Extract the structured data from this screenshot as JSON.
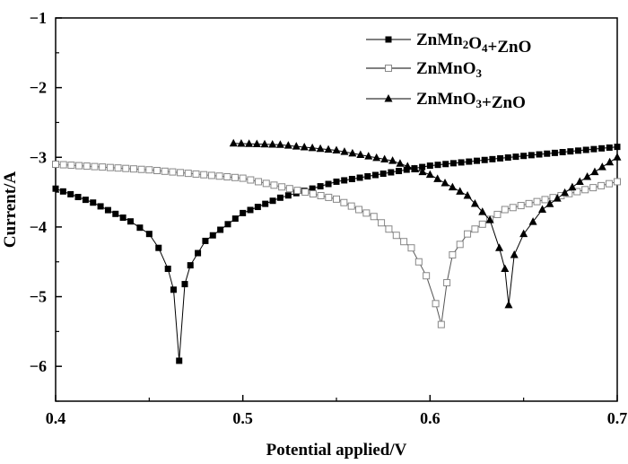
{
  "chart_data": {
    "type": "line",
    "xlabel": "Potential applied/V",
    "ylabel": "Current/A",
    "xlim": [
      0.4,
      0.7
    ],
    "ylim": [
      -6.5,
      -1
    ],
    "xticks": [
      "0.4",
      "0.5",
      "0.6",
      "0.7"
    ],
    "yticks": [
      "−6",
      "−5",
      "−4",
      "−3",
      "−2",
      "−1"
    ],
    "grid": false,
    "legend_position": "top-right",
    "series": [
      {
        "name_main": "ZnMn",
        "name_sub1": "2",
        "name_mid": "O",
        "name_sub2": "4",
        "name_tail": "+ZnO",
        "marker": "filled-square",
        "x": [
          0.4,
          0.42,
          0.44,
          0.45,
          0.455,
          0.46,
          0.463,
          0.466,
          0.469,
          0.472,
          0.48,
          0.5,
          0.52,
          0.55,
          0.6,
          0.65,
          0.7
        ],
        "y": [
          -3.45,
          -3.65,
          -3.92,
          -4.1,
          -4.3,
          -4.6,
          -4.9,
          -5.92,
          -4.82,
          -4.55,
          -4.2,
          -3.8,
          -3.58,
          -3.35,
          -3.12,
          -2.98,
          -2.85
        ]
      },
      {
        "name_main": "ZnMnO",
        "name_sub1": "3",
        "name_mid": "",
        "name_sub2": "",
        "name_tail": "",
        "marker": "open-square",
        "x": [
          0.4,
          0.45,
          0.5,
          0.55,
          0.57,
          0.59,
          0.598,
          0.603,
          0.606,
          0.609,
          0.612,
          0.62,
          0.64,
          0.67,
          0.7
        ],
        "y": [
          -3.1,
          -3.18,
          -3.3,
          -3.6,
          -3.85,
          -4.3,
          -4.7,
          -5.1,
          -5.4,
          -4.8,
          -4.4,
          -4.1,
          -3.75,
          -3.55,
          -3.35
        ]
      },
      {
        "name_main": "ZnMnO",
        "name_sub1": "3",
        "name_mid": "",
        "name_sub2": "+ZnO",
        "name_tail": "",
        "marker": "filled-triangle",
        "x": [
          0.495,
          0.52,
          0.55,
          0.58,
          0.6,
          0.62,
          0.632,
          0.637,
          0.64,
          0.642,
          0.645,
          0.65,
          0.66,
          0.68,
          0.7
        ],
        "y": [
          -2.8,
          -2.82,
          -2.9,
          -3.05,
          -3.25,
          -3.55,
          -3.9,
          -4.3,
          -4.6,
          -5.12,
          -4.4,
          -4.1,
          -3.75,
          -3.35,
          -3.0
        ]
      }
    ]
  }
}
